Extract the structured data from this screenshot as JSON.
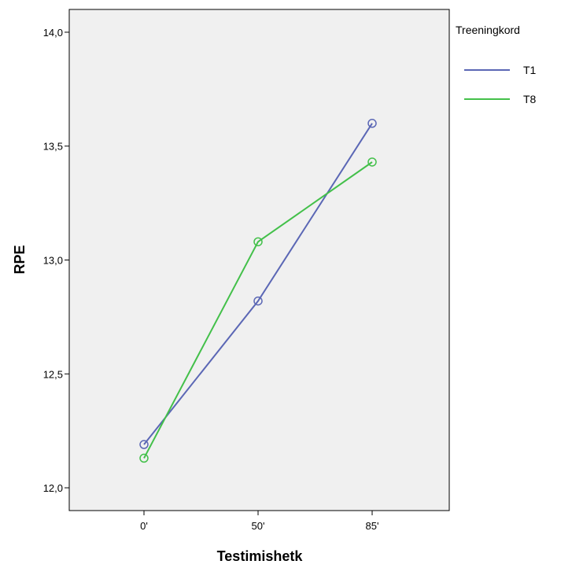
{
  "chart_data": {
    "type": "line",
    "categories": [
      "0'",
      "50'",
      "85'"
    ],
    "series": [
      {
        "name": "T1",
        "values": [
          12.19,
          12.82,
          13.6
        ],
        "color": "#5b67b5"
      },
      {
        "name": "T8",
        "values": [
          12.13,
          13.08,
          13.43
        ],
        "color": "#43c04a"
      }
    ],
    "ylim": [
      11.9,
      14.1
    ],
    "yticks": [
      12.0,
      12.5,
      13.0,
      13.5,
      14.0
    ],
    "ytick_labels": [
      "12,0",
      "12,5",
      "13,0",
      "13,5",
      "14,0"
    ],
    "xlabel": "Testimishetk",
    "ylabel": "RPE",
    "legend": {
      "title": "Treeningkord",
      "placement": "right"
    },
    "grid": false,
    "plot_background": "#f0f0f0"
  }
}
